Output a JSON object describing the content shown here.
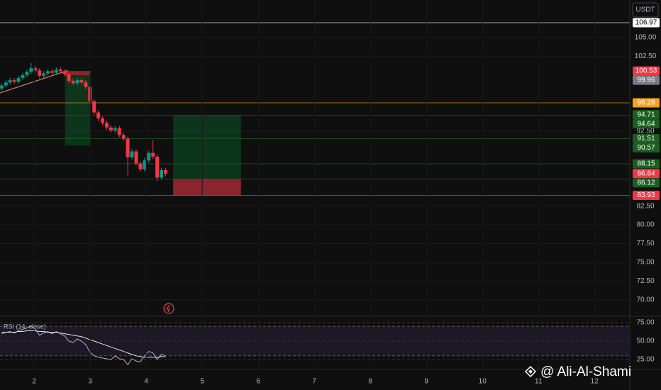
{
  "chart_data": [
    {
      "type": "candlestick",
      "currency": "USDT",
      "x": [
        1.42,
        1.495,
        1.57,
        1.645,
        1.72,
        1.795,
        1.87,
        1.945,
        2.02,
        2.095,
        2.17,
        2.245,
        2.32,
        2.395,
        2.47,
        2.545,
        2.62,
        2.695,
        2.77,
        2.845,
        2.92,
        2.995,
        3.07,
        3.145,
        3.22,
        3.295,
        3.37,
        3.445,
        3.52,
        3.595,
        3.67,
        3.745,
        3.82,
        3.895,
        3.97,
        4.045,
        4.12,
        4.195,
        4.27,
        4.345
      ],
      "open": [
        98.2,
        98.6,
        99.0,
        99.3,
        99.1,
        99.6,
        100.0,
        100.4,
        100.9,
        100.6,
        99.9,
        100.2,
        100.5,
        100.3,
        100.7,
        100.5,
        100.1,
        99.2,
        98.9,
        99.3,
        99.0,
        98.4,
        96.5,
        95.0,
        94.2,
        93.6,
        93.0,
        92.6,
        92.9,
        92.0,
        91.5,
        89.0,
        89.8,
        88.2,
        87.4,
        88.6,
        89.6,
        89.1,
        86.3,
        87.3
      ],
      "high": [
        98.9,
        99.3,
        99.6,
        99.6,
        99.9,
        100.3,
        100.7,
        101.6,
        101.2,
        100.9,
        100.5,
        100.8,
        100.8,
        101.0,
        101.0,
        100.8,
        100.4,
        99.5,
        99.6,
        99.6,
        99.3,
        98.7,
        96.8,
        95.3,
        94.5,
        93.9,
        93.3,
        93.2,
        93.2,
        92.3,
        91.8,
        90.1,
        90.1,
        88.5,
        88.9,
        89.9,
        91.3,
        89.4,
        87.6,
        87.6
      ],
      "low": [
        97.9,
        98.3,
        98.7,
        98.8,
        98.8,
        99.3,
        99.7,
        100.1,
        100.3,
        99.6,
        99.6,
        99.9,
        100.0,
        100.0,
        100.2,
        99.8,
        98.9,
        98.6,
        98.6,
        98.7,
        98.1,
        96.2,
        94.7,
        93.9,
        93.3,
        92.7,
        92.3,
        92.3,
        91.7,
        91.2,
        86.6,
        88.7,
        87.9,
        87.1,
        87.1,
        88.3,
        88.8,
        85.8,
        86.0,
        86.5
      ],
      "close": [
        98.6,
        99.0,
        99.3,
        99.1,
        99.6,
        100.0,
        100.4,
        100.9,
        100.6,
        99.9,
        100.2,
        100.5,
        100.3,
        100.7,
        100.5,
        100.1,
        99.2,
        98.9,
        99.3,
        99.0,
        98.4,
        96.5,
        95.0,
        94.2,
        93.6,
        93.0,
        92.6,
        92.9,
        92.0,
        91.5,
        89.0,
        89.8,
        88.2,
        87.4,
        88.6,
        89.6,
        89.1,
        86.3,
        87.3,
        86.84
      ],
      "up_color": "#089981",
      "down_color": "#f23645",
      "xlim": [
        1.39,
        12.63
      ],
      "ylim": [
        67.9,
        110
      ],
      "yticks": [
        {
          "value": 105,
          "label": "105.00"
        },
        {
          "value": 102.5,
          "label": "102.50"
        },
        {
          "value": 92.5,
          "label": "92.50"
        },
        {
          "value": 82.5,
          "label": "82.50"
        },
        {
          "value": 80,
          "label": "80.00"
        },
        {
          "value": 77.5,
          "label": "77.50"
        },
        {
          "value": 75,
          "label": "75.00"
        },
        {
          "value": 72.5,
          "label": "72.50"
        },
        {
          "value": 70,
          "label": "70.00"
        }
      ],
      "grid": true,
      "price_labels": [
        {
          "value": 106.97,
          "label": "106.97",
          "color": "#ffffff",
          "line": true
        },
        {
          "value": 100.53,
          "label": "100.53",
          "color": "#f23645",
          "line": false
        },
        {
          "value": 99.96,
          "label": "99.96",
          "color": "#787b86",
          "line": false
        },
        {
          "value": 96.28,
          "label": "96.28",
          "color": "#f7a21b",
          "line": true
        },
        {
          "value": 94.71,
          "label": "94.71",
          "color": "#1b5e20",
          "line": false
        },
        {
          "value": 94.64,
          "label": "94.64",
          "color": "#1b5e20",
          "line": true
        },
        {
          "value": 91.51,
          "label": "91.51",
          "color": "#1b5e20",
          "line": true
        },
        {
          "value": 90.57,
          "label": "90.57",
          "color": "#1b5e20",
          "line": false
        },
        {
          "value": 88.15,
          "label": "88.15",
          "color": "#1b5e20",
          "line": true
        },
        {
          "value": 86.84,
          "label": "86.84",
          "color": "#f23645",
          "line": false
        },
        {
          "value": 86.12,
          "label": "86.12",
          "color": "#1b5e20",
          "line": true
        },
        {
          "value": 83.93,
          "label": "83.93",
          "color": "#f23645",
          "line": true
        }
      ],
      "positions": [
        {
          "x": [
            2.55,
            3.01
          ],
          "entry": 99.96,
          "target": 90.57,
          "stop": 100.53
        },
        {
          "x": [
            4.48,
            5.69
          ],
          "entry": 86.12,
          "target": 94.64,
          "stop": 83.93
        }
      ],
      "trend_line": {
        "x": [
          1.39,
          2.6
        ],
        "y": [
          97.6,
          100.6
        ],
        "color": "#f7936f"
      },
      "watermark": "@ Ali-Al-Shami"
    },
    {
      "type": "line",
      "title": "RSI (14, close)",
      "x": [
        1.42,
        1.495,
        1.57,
        1.645,
        1.72,
        1.795,
        1.87,
        1.945,
        2.02,
        2.095,
        2.17,
        2.245,
        2.32,
        2.395,
        2.47,
        2.545,
        2.62,
        2.695,
        2.77,
        2.845,
        2.92,
        2.995,
        3.07,
        3.145,
        3.22,
        3.295,
        3.37,
        3.445,
        3.52,
        3.595,
        3.67,
        3.745,
        3.82,
        3.895,
        3.97,
        4.045,
        4.12,
        4.195,
        4.27,
        4.345
      ],
      "series": [
        {
          "name": "RSI",
          "color": "#b8a9d9",
          "values": [
            60,
            62,
            63,
            61,
            64,
            66,
            68,
            70,
            66,
            58,
            61,
            63,
            60,
            63,
            60,
            57,
            50,
            48,
            53,
            50,
            45,
            35,
            30,
            28,
            27,
            26,
            25,
            30,
            26,
            25,
            18,
            26,
            23,
            22,
            30,
            36,
            34,
            25,
            32,
            30
          ]
        },
        {
          "name": "MA",
          "color": "#e0e0e0",
          "values": [
            62,
            62,
            62,
            62,
            63,
            63,
            64,
            64,
            64,
            63,
            63,
            62,
            62,
            62,
            61,
            60,
            59,
            58,
            57,
            56,
            54,
            52,
            50,
            48,
            46,
            44,
            42,
            40,
            38,
            36,
            34,
            32,
            30,
            29,
            28,
            28,
            28,
            28,
            29,
            29
          ]
        }
      ],
      "band": [
        30,
        70
      ],
      "xlim": [
        1.39,
        12.63
      ],
      "ylim": [
        12.5,
        83.7
      ],
      "yticks": [
        {
          "value": 75,
          "label": "75.00"
        },
        {
          "value": 50,
          "label": "50.00"
        },
        {
          "value": 25,
          "label": "25.00"
        }
      ],
      "xticks": [
        2,
        3,
        4,
        5,
        6,
        7,
        8,
        9,
        10,
        11,
        12
      ]
    }
  ]
}
